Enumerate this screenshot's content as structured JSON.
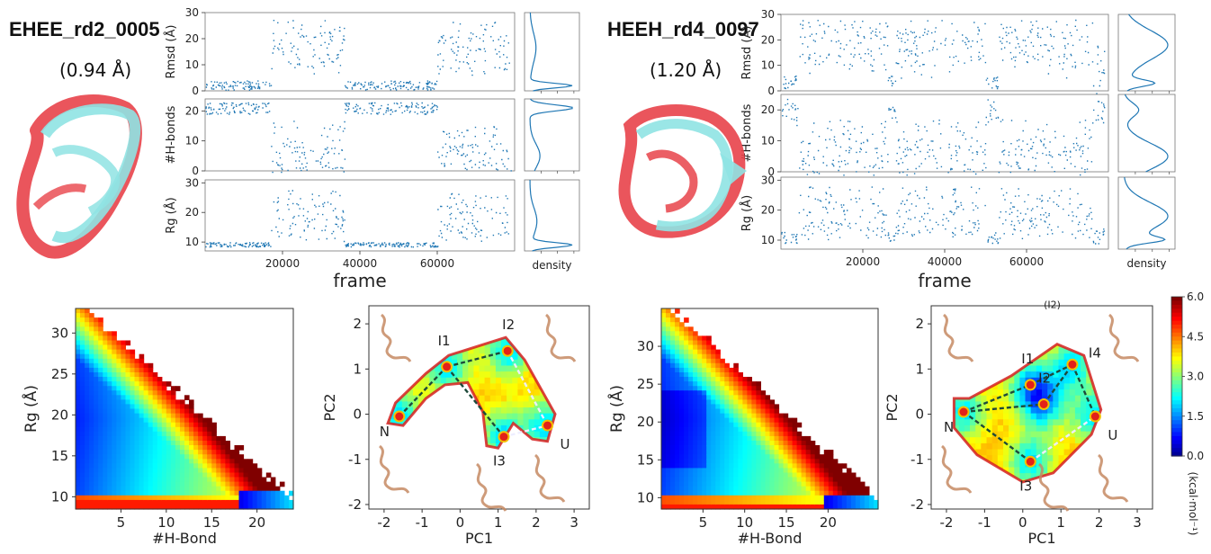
{
  "panels": {
    "left": {
      "title": "EHEE_rd2_0005",
      "rmsd_value": "(0.94 Å)"
    },
    "right": {
      "title": "HEEH_rd4_0097",
      "rmsd_value": "(1.20 Å)"
    }
  },
  "colors": {
    "trace": "#1f77b4",
    "structure_red": "#e8434a",
    "structure_cyan": "#8fe3e3",
    "protein": "#c68a63"
  },
  "chart_data": [
    {
      "type": "scatter",
      "title": "",
      "xlabel": "frame",
      "x_ticks": [
        20000,
        40000,
        60000
      ],
      "xlim": [
        0,
        80000
      ],
      "subplots": [
        {
          "ylabel": "Rmsd (Å)",
          "yticks": [
            0,
            10,
            20,
            30
          ],
          "ylim": [
            0,
            30
          ],
          "segments": [
            {
              "from": 0,
              "to": 17000,
              "mean": 2,
              "lo": 0.5,
              "hi": 4
            },
            {
              "from": 17000,
              "to": 36000,
              "mean": 17,
              "lo": 5,
              "hi": 28
            },
            {
              "from": 36000,
              "to": 60000,
              "mean": 2,
              "lo": 0.5,
              "hi": 4
            },
            {
              "from": 60000,
              "to": 79000,
              "mean": 16,
              "lo": 5,
              "hi": 27
            }
          ]
        },
        {
          "ylabel": "#H-bonds",
          "yticks": [
            0,
            10,
            20
          ],
          "ylim": [
            0,
            24
          ],
          "segments": [
            {
              "from": 0,
              "to": 17000,
              "mean": 21,
              "lo": 19,
              "hi": 23
            },
            {
              "from": 17000,
              "to": 36000,
              "mean": 5,
              "lo": 0,
              "hi": 17
            },
            {
              "from": 36000,
              "to": 60000,
              "mean": 21,
              "lo": 19,
              "hi": 23
            },
            {
              "from": 60000,
              "to": 79000,
              "mean": 5,
              "lo": 0,
              "hi": 15
            }
          ]
        },
        {
          "ylabel": "Rg (Å)",
          "yticks": [
            10,
            20,
            30
          ],
          "ylim": [
            7,
            31
          ],
          "segments": [
            {
              "from": 0,
              "to": 17000,
              "mean": 9,
              "lo": 8.5,
              "hi": 10
            },
            {
              "from": 17000,
              "to": 36000,
              "mean": 17,
              "lo": 10,
              "hi": 28
            },
            {
              "from": 36000,
              "to": 60000,
              "mean": 9,
              "lo": 8.5,
              "hi": 10
            },
            {
              "from": 60000,
              "to": 79000,
              "mean": 17,
              "lo": 10,
              "hi": 27
            }
          ]
        }
      ],
      "density_label": "density"
    },
    {
      "type": "scatter",
      "title": "",
      "xlabel": "frame",
      "x_ticks": [
        20000,
        40000,
        60000
      ],
      "xlim": [
        0,
        80000
      ],
      "subplots": [
        {
          "ylabel": "Rmsd (Å)",
          "yticks": [
            0,
            10,
            20,
            30
          ],
          "ylim": [
            0,
            30
          ],
          "segments": [
            {
              "from": 0,
              "to": 4000,
              "mean": 3,
              "lo": 1,
              "hi": 6
            },
            {
              "from": 4000,
              "to": 26000,
              "mean": 18,
              "lo": 5,
              "hi": 28
            },
            {
              "from": 26000,
              "to": 28000,
              "mean": 3,
              "lo": 1,
              "hi": 6
            },
            {
              "from": 28000,
              "to": 50000,
              "mean": 18,
              "lo": 5,
              "hi": 28
            },
            {
              "from": 50000,
              "to": 53000,
              "mean": 3,
              "lo": 1,
              "hi": 6
            },
            {
              "from": 53000,
              "to": 76000,
              "mean": 18,
              "lo": 5,
              "hi": 28
            },
            {
              "from": 76000,
              "to": 79000,
              "mean": 4,
              "lo": 1,
              "hi": 20
            }
          ]
        },
        {
          "ylabel": "#H-bonds",
          "yticks": [
            0,
            10,
            20
          ],
          "ylim": [
            0,
            25
          ],
          "segments": [
            {
              "from": 0,
              "to": 4000,
              "mean": 20,
              "lo": 15,
              "hi": 24
            },
            {
              "from": 4000,
              "to": 26000,
              "mean": 5,
              "lo": 0,
              "hi": 17
            },
            {
              "from": 26000,
              "to": 28000,
              "mean": 20,
              "lo": 15,
              "hi": 24
            },
            {
              "from": 28000,
              "to": 50000,
              "mean": 5,
              "lo": 0,
              "hi": 17
            },
            {
              "from": 50000,
              "to": 53000,
              "mean": 20,
              "lo": 15,
              "hi": 24
            },
            {
              "from": 53000,
              "to": 76000,
              "mean": 5,
              "lo": 0,
              "hi": 17
            },
            {
              "from": 76000,
              "to": 79000,
              "mean": 20,
              "lo": 15,
              "hi": 24
            }
          ]
        },
        {
          "ylabel": "Rg (Å)",
          "yticks": [
            10,
            20,
            30
          ],
          "ylim": [
            7,
            31
          ],
          "segments": [
            {
              "from": 0,
              "to": 4000,
              "mean": 10,
              "lo": 9,
              "hi": 13
            },
            {
              "from": 4000,
              "to": 26000,
              "mean": 18,
              "lo": 10,
              "hi": 28
            },
            {
              "from": 26000,
              "to": 28000,
              "mean": 10,
              "lo": 9,
              "hi": 13
            },
            {
              "from": 28000,
              "to": 50000,
              "mean": 18,
              "lo": 10,
              "hi": 28
            },
            {
              "from": 50000,
              "to": 53000,
              "mean": 10,
              "lo": 9,
              "hi": 13
            },
            {
              "from": 53000,
              "to": 76000,
              "mean": 18,
              "lo": 10,
              "hi": 28
            },
            {
              "from": 76000,
              "to": 79000,
              "mean": 11,
              "lo": 9,
              "hi": 15
            }
          ]
        }
      ],
      "density_label": "density"
    },
    {
      "type": "heatmap",
      "title": "",
      "xlabel": "#H-Bond",
      "ylabel": "Rg (Å)",
      "xlim": [
        0,
        24
      ],
      "ylim": [
        8.5,
        33
      ],
      "x_ticks": [
        5,
        10,
        15,
        20
      ],
      "y_ticks": [
        10,
        15,
        20,
        25,
        30
      ]
    },
    {
      "type": "heatmap",
      "title": "",
      "xlabel": "PC1",
      "ylabel": "PC2",
      "xlim": [
        -2.4,
        3.4
      ],
      "ylim": [
        -2.1,
        2.4
      ],
      "x_ticks": [
        -2,
        -1,
        0,
        1,
        2,
        3
      ],
      "y_ticks": [
        -2,
        -1,
        0,
        1,
        2
      ],
      "states": [
        {
          "label": "N",
          "x": -1.6,
          "y": -0.05
        },
        {
          "label": "I1",
          "x": -0.35,
          "y": 1.05
        },
        {
          "label": "I2",
          "x": 1.25,
          "y": 1.4
        },
        {
          "label": "I3",
          "x": 1.15,
          "y": -0.5
        },
        {
          "label": "U",
          "x": 2.3,
          "y": -0.25
        }
      ]
    },
    {
      "type": "heatmap",
      "title": "",
      "xlabel": "#H-Bond",
      "ylabel": "Rg (Å)",
      "xlim": [
        0,
        26
      ],
      "ylim": [
        8.5,
        35
      ],
      "x_ticks": [
        5,
        10,
        15,
        20
      ],
      "y_ticks": [
        10,
        15,
        20,
        25,
        30
      ]
    },
    {
      "type": "heatmap",
      "title": "",
      "xlabel": "PC1",
      "ylabel": "PC2",
      "xlim": [
        -2.4,
        3.4
      ],
      "ylim": [
        -2.1,
        2.4
      ],
      "x_ticks": [
        -2,
        -1,
        0,
        1,
        2,
        3
      ],
      "y_ticks": [
        -2,
        -1,
        0,
        1,
        2
      ],
      "states": [
        {
          "label": "N",
          "x": -1.55,
          "y": 0.05
        },
        {
          "label": "I1",
          "x": 0.2,
          "y": 0.65
        },
        {
          "label": "I2",
          "x": 0.55,
          "y": 0.22
        },
        {
          "label": "I4",
          "x": 1.3,
          "y": 1.1
        },
        {
          "label": "I3",
          "x": 0.2,
          "y": -1.05
        },
        {
          "label": "U",
          "x": 1.9,
          "y": -0.05
        }
      ],
      "extra_label": "(I2)"
    }
  ],
  "colorbar": {
    "ticks": [
      "6.0",
      "4.5",
      "3.0",
      "1.5",
      "0.0"
    ],
    "label": "(kcal·mol⁻¹)",
    "min": 0,
    "max": 6
  }
}
